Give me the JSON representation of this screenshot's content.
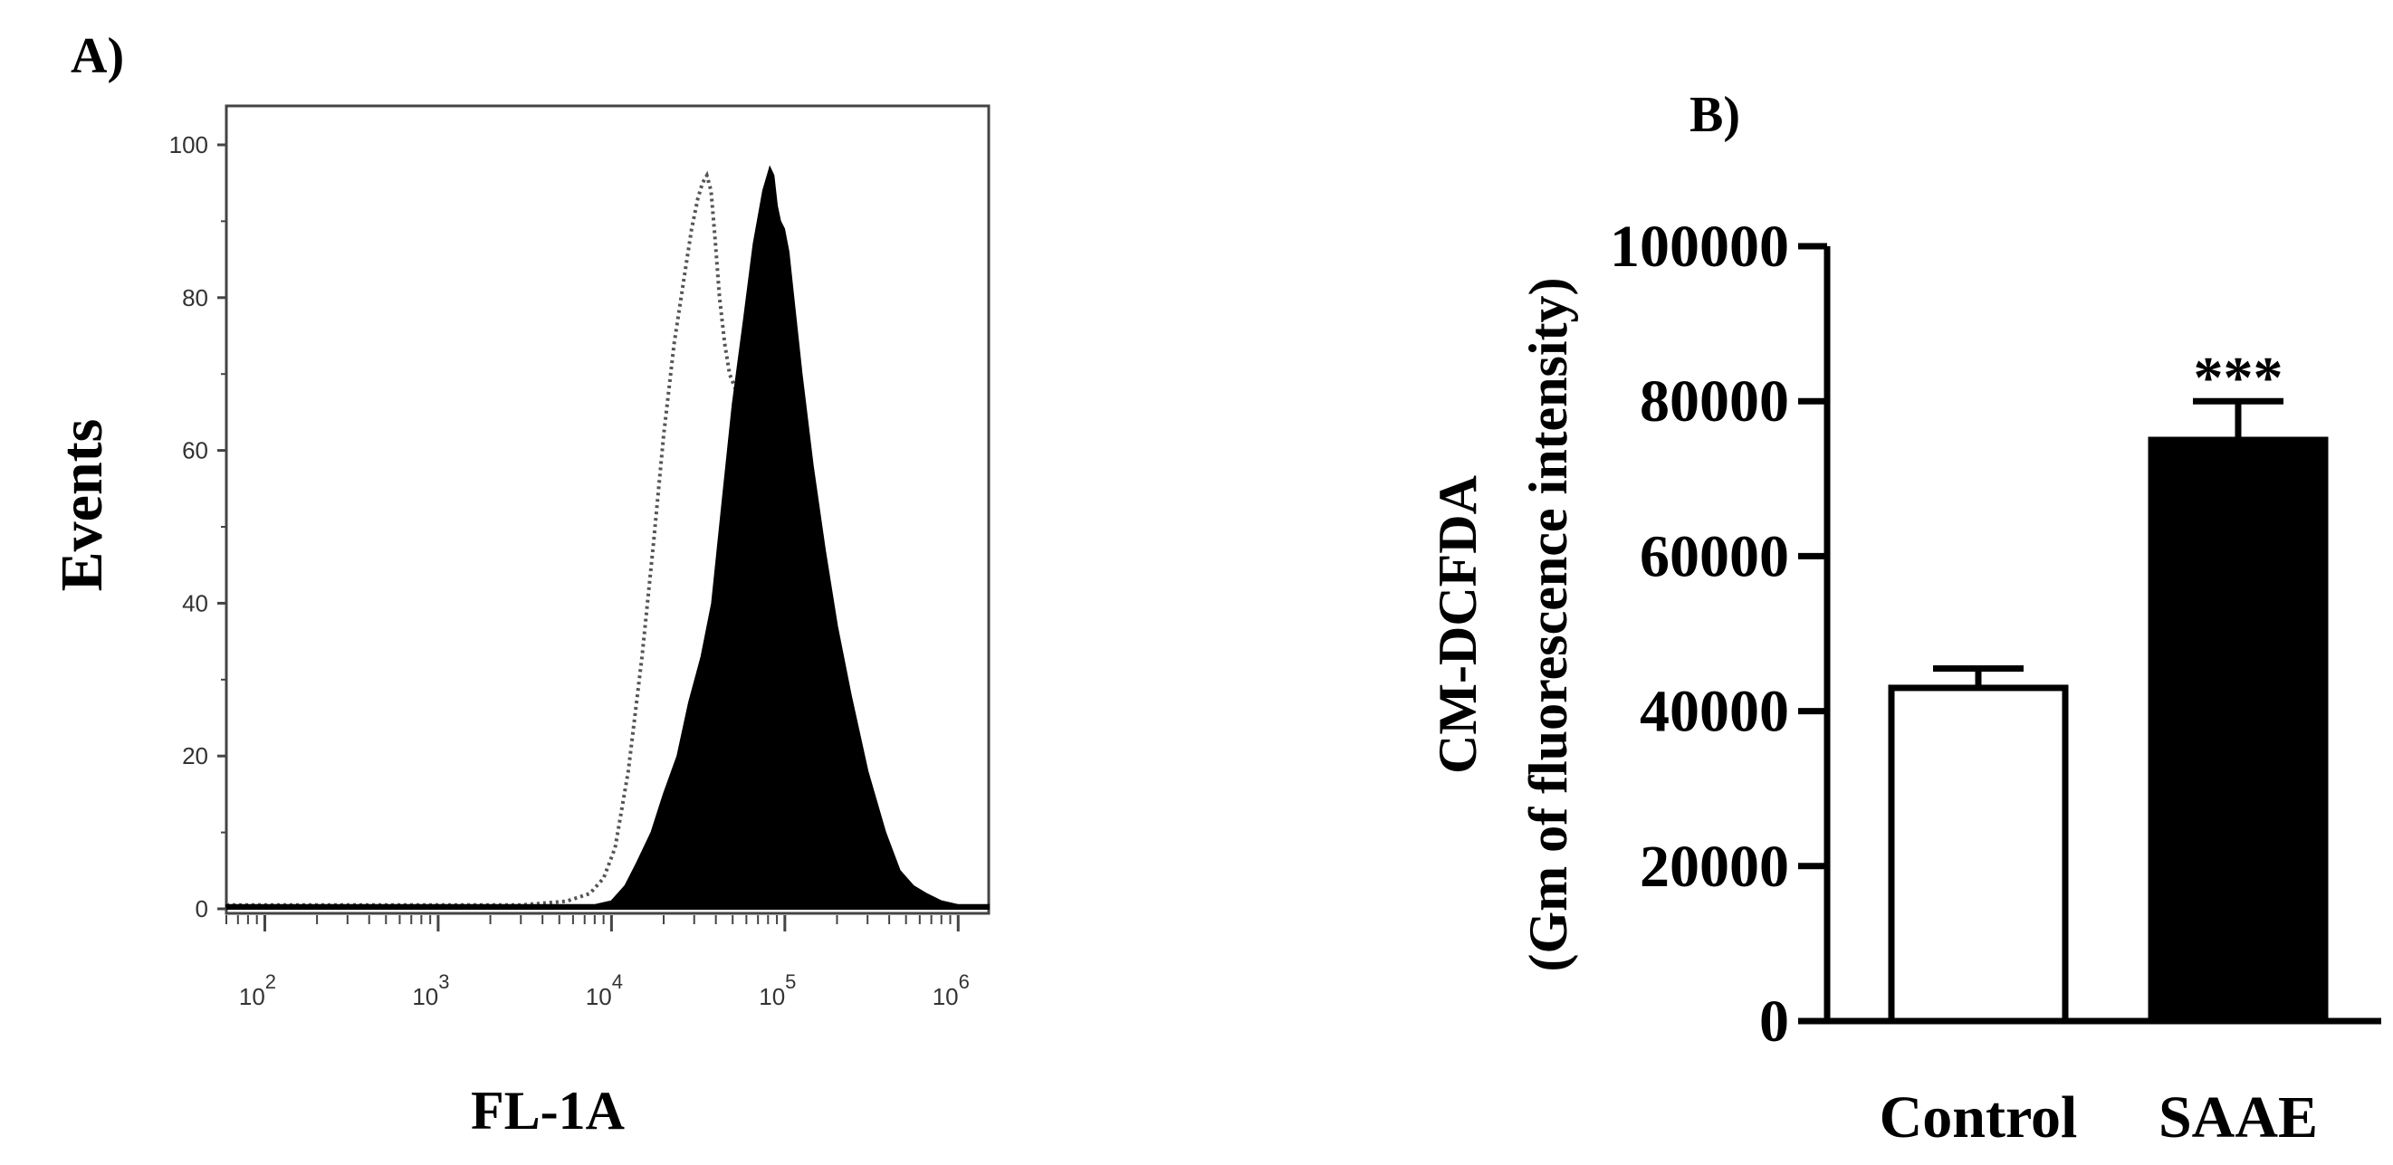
{
  "chart_data": [
    {
      "panel": "A)",
      "type": "area",
      "xlabel": "FL-1A",
      "ylabel": "Events",
      "xscale": "log",
      "xlim": [
        60,
        1500000
      ],
      "ylim": [
        0,
        104
      ],
      "x_tick_labels": [
        {
          "base": "10",
          "exp": "2",
          "value": 100
        },
        {
          "base": "10",
          "exp": "3",
          "value": 1000
        },
        {
          "base": "10",
          "exp": "4",
          "value": 10000
        },
        {
          "base": "10",
          "exp": "5",
          "value": 100000
        },
        {
          "base": "10",
          "exp": "6",
          "value": 1000000
        }
      ],
      "y_ticks": [
        0,
        20,
        40,
        60,
        80,
        100
      ],
      "series": [
        {
          "style": "dotted-outline",
          "color": "#555555",
          "x": [
            60,
            3000,
            5500,
            7500,
            9000,
            10500,
            12500,
            15000,
            17500,
            20000,
            23000,
            26000,
            29000,
            31500,
            33500,
            35500,
            37500,
            39500,
            42000,
            45000,
            48000,
            52000,
            56000,
            62000
          ],
          "y": [
            0.5,
            0.5,
            1,
            2,
            4,
            8,
            18,
            33,
            48,
            62,
            74,
            82,
            89,
            93,
            95,
            96,
            94,
            88,
            80,
            74,
            70,
            68,
            68,
            70
          ]
        },
        {
          "style": "filled",
          "color": "#000000",
          "x": [
            60,
            8000,
            10000,
            12000,
            14000,
            17000,
            20000,
            24000,
            28000,
            33000,
            38000,
            44000,
            50000,
            58000,
            66000,
            75000,
            82000,
            86000,
            90000,
            94000,
            99000,
            105000,
            112000,
            125000,
            145000,
            170000,
            200000,
            240000,
            300000,
            380000,
            460000,
            550000,
            650000,
            800000,
            1000000,
            1500000
          ],
          "y": [
            0.5,
            0.5,
            1,
            3,
            6,
            10,
            15,
            20,
            27,
            33,
            40,
            54,
            66,
            77,
            87,
            94,
            97,
            96,
            92,
            90,
            89,
            86,
            80,
            70,
            58,
            47,
            37,
            28,
            18,
            10,
            5,
            3,
            2,
            1,
            0.5,
            0.5
          ]
        }
      ]
    },
    {
      "panel": "B)",
      "type": "bar",
      "categories": [
        "Control",
        "SAAE"
      ],
      "values": [
        43000,
        75000
      ],
      "errors": [
        2500,
        5000
      ],
      "bar_colors": [
        "#ffffff",
        "#000000"
      ],
      "significance": [
        "",
        "***"
      ],
      "ylabel_line1": "CM-DCFDA",
      "ylabel_line2": "(Gm of fluorescence intensity)",
      "ylim": [
        0,
        100000
      ],
      "y_ticks": [
        "0",
        "20000",
        "40000",
        "60000",
        "80000",
        "100000"
      ]
    }
  ]
}
